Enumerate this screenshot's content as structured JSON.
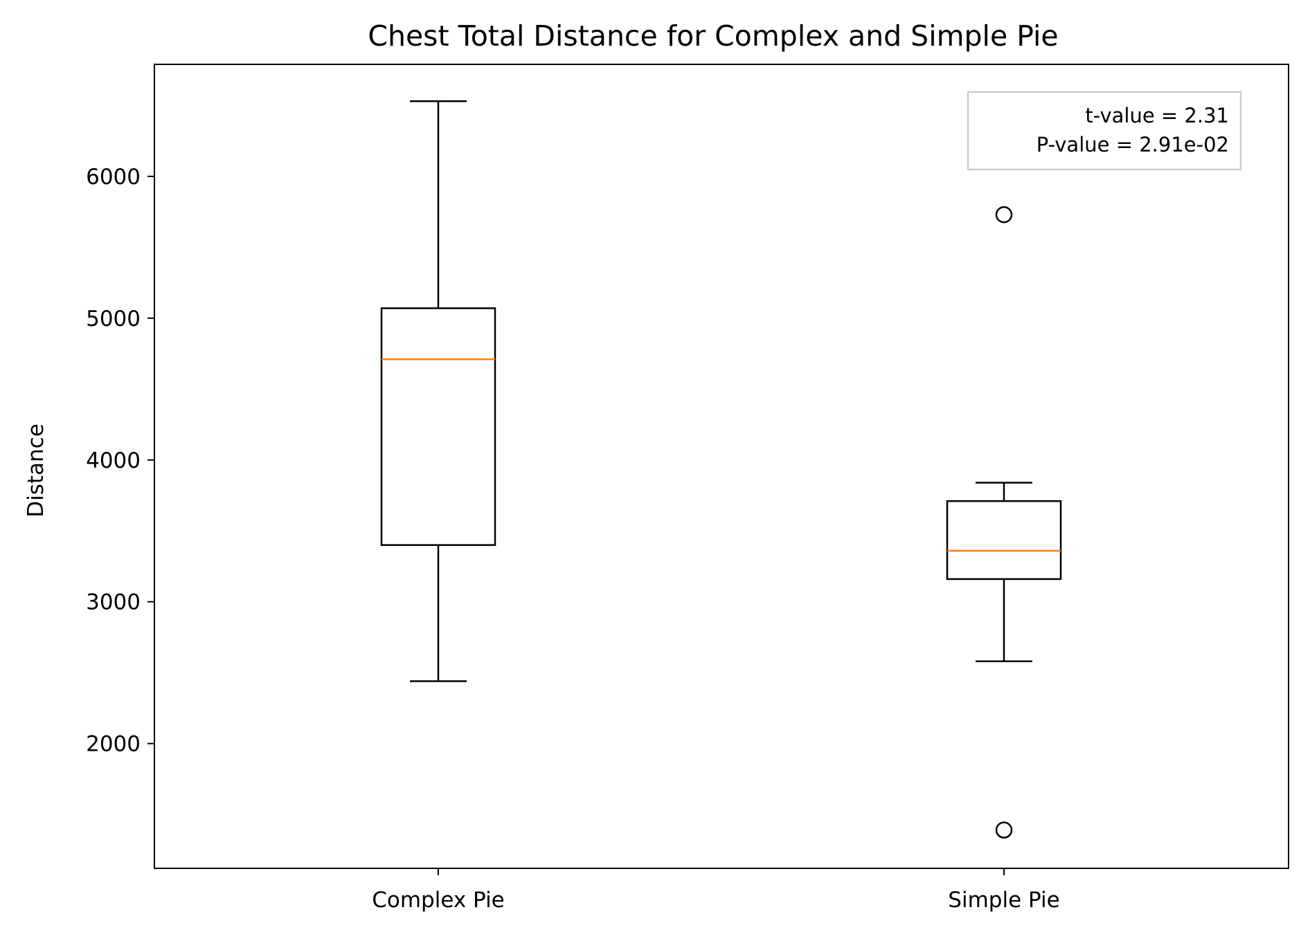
{
  "chart_data": {
    "type": "box",
    "title": "Chest Total Distance for Complex and Simple Pie",
    "xlabel": "",
    "ylabel": "Distance",
    "categories": [
      "Complex Pie",
      "Simple Pie"
    ],
    "ylim": [
      1120,
      6790
    ],
    "yticks": [
      2000,
      3000,
      4000,
      5000,
      6000
    ],
    "yticks_labels": [
      "2000",
      "3000",
      "4000",
      "5000",
      "6000"
    ],
    "boxes": [
      {
        "whisker_low": 2440,
        "q1": 3400,
        "median": 4710,
        "q3": 5070,
        "whisker_high": 6530,
        "outliers": []
      },
      {
        "whisker_low": 2580,
        "q1": 3160,
        "median": 3360,
        "q3": 3710,
        "whisker_high": 3840,
        "outliers": [
          5730,
          1390
        ]
      }
    ],
    "annotation": {
      "lines": [
        "t-value = 2.31",
        "P-value = 2.91e-02"
      ]
    },
    "colors": {
      "median": "#ff7f0e",
      "box": "#000000",
      "frame": "#000000",
      "legend_border": "#cccccc"
    },
    "grid": false
  }
}
